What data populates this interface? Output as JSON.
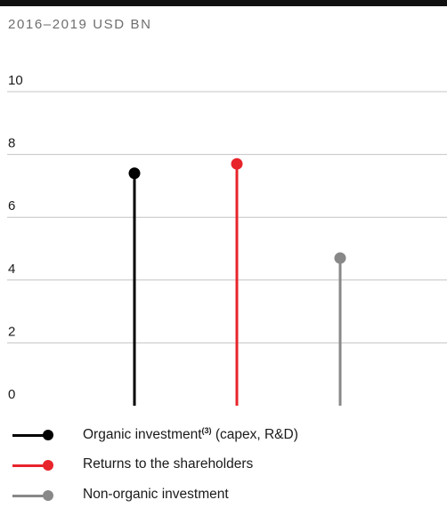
{
  "header": {
    "subtitle": "2016–2019 USD BN"
  },
  "chart_data": {
    "type": "lollipop",
    "subtitle": "2016–2019 USD BN",
    "ylim": [
      0,
      10
    ],
    "yticks": [
      0,
      2,
      4,
      6,
      8,
      10
    ],
    "grid": true,
    "legend_position": "bottom",
    "series": [
      {
        "name": "Organic investment(3) (capex, R&D)",
        "label_text": "Organic investment",
        "label_sup": "(3)",
        "label_rest": " (capex, R&D)",
        "value": 7.4,
        "color": "#000000"
      },
      {
        "name": "Returns to the shareholders",
        "label_text": "Returns to the shareholders",
        "label_sup": "",
        "label_rest": "",
        "value": 7.7,
        "color": "#e8242b"
      },
      {
        "name": "Non-organic investment",
        "label_text": "Non-organic investment",
        "label_sup": "",
        "label_rest": "",
        "value": 4.7,
        "color": "#888888"
      }
    ]
  }
}
